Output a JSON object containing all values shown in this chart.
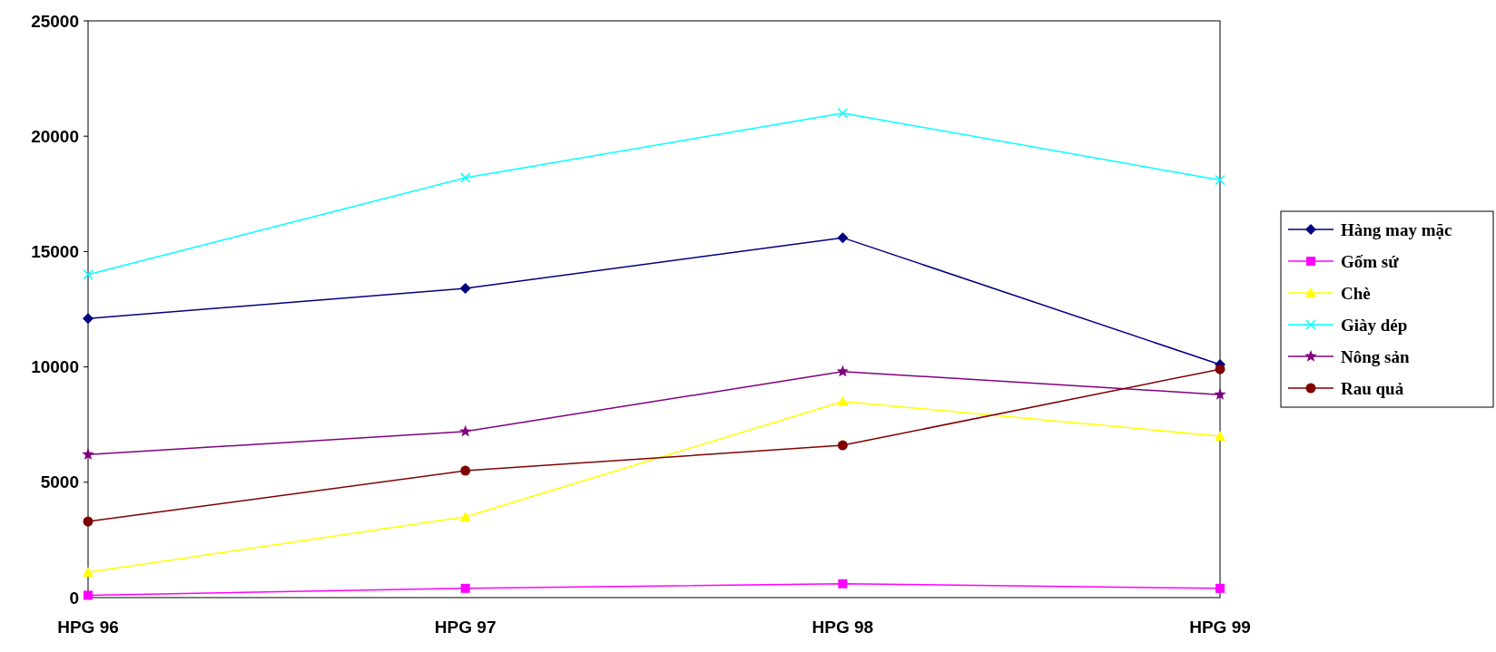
{
  "chart_data": {
    "type": "line",
    "categories": [
      "HPG 96",
      "HPG 97",
      "HPG 98",
      "HPG 99"
    ],
    "ylim": [
      0,
      25000
    ],
    "yticks": [
      0,
      5000,
      10000,
      15000,
      20000,
      25000
    ],
    "grid": false,
    "legend": "right",
    "series": [
      {
        "name": "Hàng may mặc",
        "color": "#000080",
        "marker": "diamond",
        "values": [
          12100,
          13400,
          15600,
          10100
        ]
      },
      {
        "name": "Gốm sứ",
        "color": "#ff00ff",
        "marker": "square",
        "values": [
          100,
          400,
          600,
          400
        ]
      },
      {
        "name": "Chè",
        "color": "#ffff00",
        "marker": "triangle",
        "values": [
          1100,
          3500,
          8500,
          7000
        ]
      },
      {
        "name": "Giày dép",
        "color": "#00ffff",
        "marker": "cross",
        "values": [
          14000,
          18200,
          21000,
          18100
        ]
      },
      {
        "name": "Nông sản",
        "color": "#800080",
        "marker": "star",
        "values": [
          6200,
          7200,
          9800,
          8800
        ]
      },
      {
        "name": "Rau quả",
        "color": "#800000",
        "marker": "circle",
        "values": [
          3300,
          5500,
          6600,
          9900
        ]
      }
    ]
  }
}
